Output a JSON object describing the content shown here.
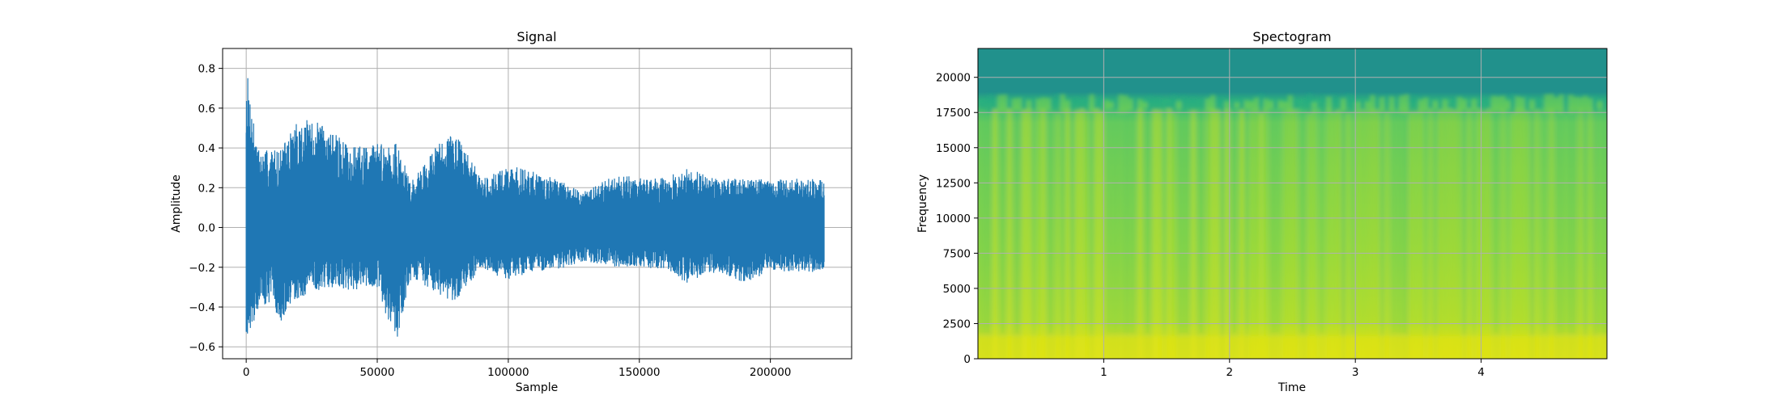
{
  "chart_data": [
    {
      "type": "line",
      "title": "Signal",
      "xlabel": "Sample",
      "ylabel": "Amplitude",
      "grid": true,
      "xlim": [
        -9000,
        231000
      ],
      "ylim": [
        -0.66,
        0.9
      ],
      "xticks": [
        0,
        50000,
        100000,
        150000,
        200000
      ],
      "xtick_labels": [
        "0",
        "50000",
        "100000",
        "150000",
        "200000"
      ],
      "yticks": [
        -0.6,
        -0.4,
        -0.2,
        0.0,
        0.2,
        0.4,
        0.6,
        0.8
      ],
      "ytick_labels": [
        "−0.6",
        "−0.4",
        "−0.2",
        "0.0",
        "0.2",
        "0.4",
        "0.6",
        "0.8"
      ],
      "color": "#1f77b4",
      "sample_count": 220500,
      "envelope_points": [
        {
          "x": 0,
          "max": 0.82,
          "min": -0.55
        },
        {
          "x": 2000,
          "max": 0.63,
          "min": -0.5
        },
        {
          "x": 5000,
          "max": 0.38,
          "min": -0.4
        },
        {
          "x": 10000,
          "max": 0.4,
          "min": -0.37
        },
        {
          "x": 13000,
          "max": 0.39,
          "min": -0.49
        },
        {
          "x": 20000,
          "max": 0.55,
          "min": -0.36
        },
        {
          "x": 30000,
          "max": 0.52,
          "min": -0.3
        },
        {
          "x": 40000,
          "max": 0.4,
          "min": -0.32
        },
        {
          "x": 50000,
          "max": 0.43,
          "min": -0.3
        },
        {
          "x": 57000,
          "max": 0.43,
          "min": -0.59
        },
        {
          "x": 63000,
          "max": 0.23,
          "min": -0.25
        },
        {
          "x": 75000,
          "max": 0.46,
          "min": -0.35
        },
        {
          "x": 80000,
          "max": 0.47,
          "min": -0.38
        },
        {
          "x": 90000,
          "max": 0.25,
          "min": -0.22
        },
        {
          "x": 100000,
          "max": 0.31,
          "min": -0.26
        },
        {
          "x": 110000,
          "max": 0.29,
          "min": -0.22
        },
        {
          "x": 120000,
          "max": 0.23,
          "min": -0.21
        },
        {
          "x": 130000,
          "max": 0.18,
          "min": -0.17
        },
        {
          "x": 140000,
          "max": 0.27,
          "min": -0.2
        },
        {
          "x": 150000,
          "max": 0.25,
          "min": -0.2
        },
        {
          "x": 160000,
          "max": 0.25,
          "min": -0.21
        },
        {
          "x": 168000,
          "max": 0.3,
          "min": -0.28
        },
        {
          "x": 180000,
          "max": 0.24,
          "min": -0.22
        },
        {
          "x": 190000,
          "max": 0.25,
          "min": -0.28
        },
        {
          "x": 200000,
          "max": 0.24,
          "min": -0.22
        },
        {
          "x": 210000,
          "max": 0.25,
          "min": -0.22
        },
        {
          "x": 220000,
          "max": 0.24,
          "min": -0.23
        }
      ]
    },
    {
      "type": "heatmap",
      "title": "Spectogram",
      "xlabel": "Time",
      "ylabel": "Frequency",
      "grid": true,
      "xlim": [
        0.0,
        5.0
      ],
      "ylim": [
        0,
        22050
      ],
      "xticks": [
        1,
        2,
        3,
        4
      ],
      "xtick_labels": [
        "1",
        "2",
        "3",
        "4"
      ],
      "yticks": [
        0,
        2500,
        5000,
        7500,
        10000,
        12500,
        15000,
        17500,
        20000
      ],
      "ytick_labels": [
        "0",
        "2500",
        "5000",
        "7500",
        "10000",
        "12500",
        "15000",
        "17500",
        "20000"
      ],
      "colormap": "viridis",
      "cutoff_frequency": 18000,
      "colors": {
        "high": "#dde318",
        "mid": "#7ad151",
        "low": "#22a884",
        "floor": "#21918c"
      }
    }
  ]
}
